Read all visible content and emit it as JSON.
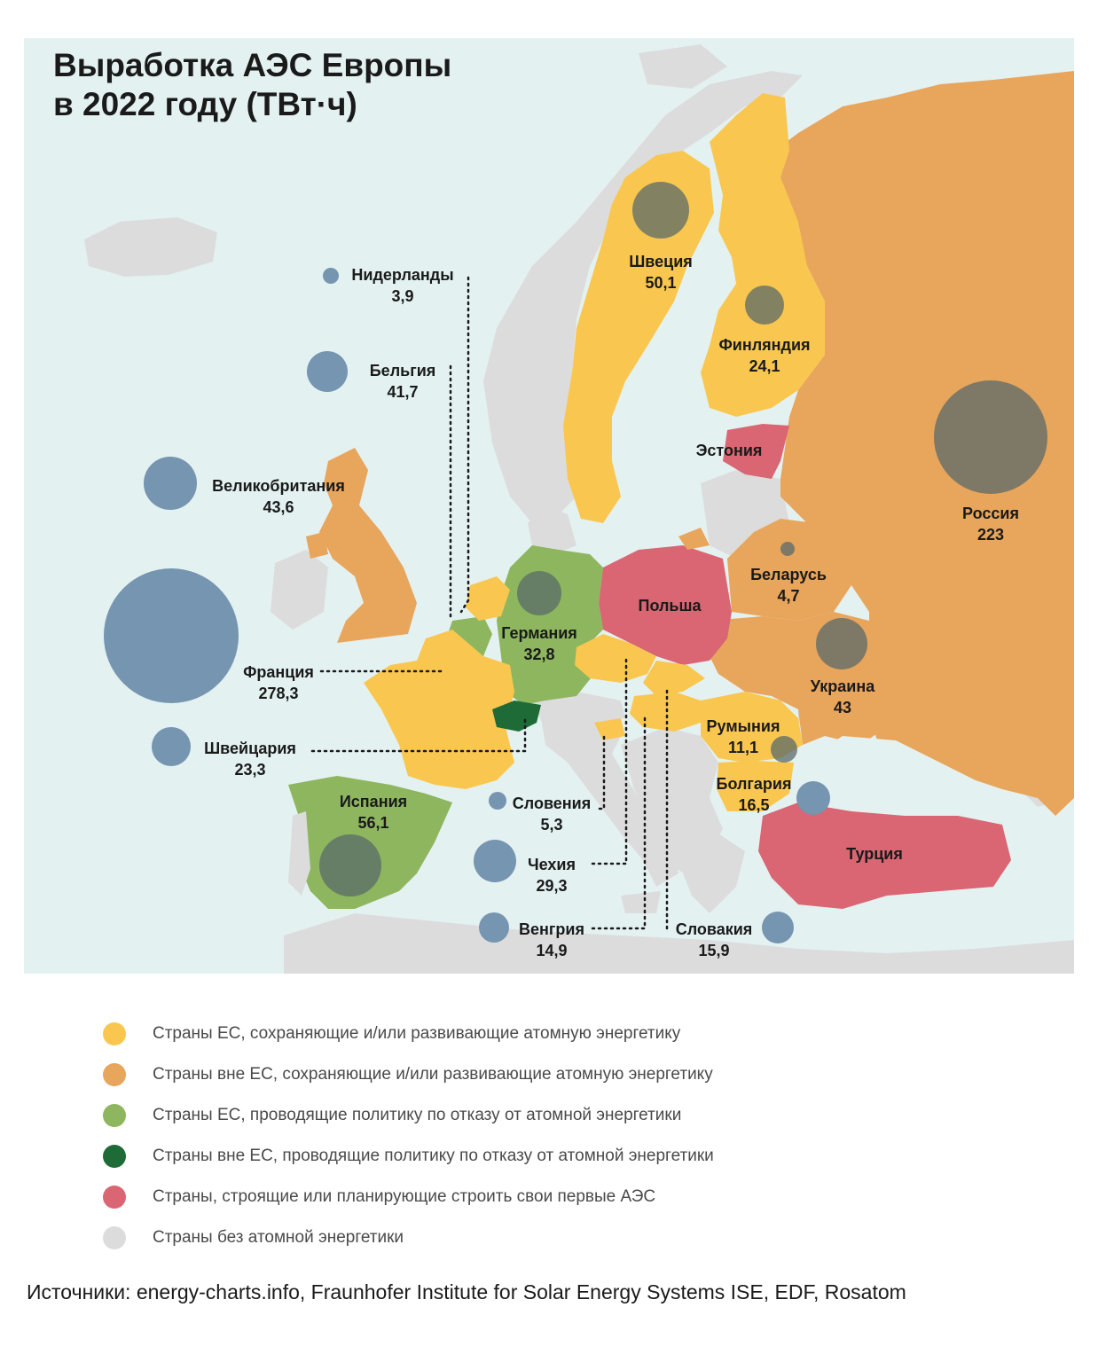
{
  "title": {
    "line1": "Выработка АЭС Европы",
    "line2": "в 2022 году (ТВт·ч)"
  },
  "colors": {
    "eu_keep": "#f9c74f",
    "non_eu_keep": "#e8a55c",
    "eu_phaseout": "#8db65e",
    "non_eu_phaseout": "#1e6b38",
    "first_npp": "#d96672",
    "no_nuclear": "#dcdcdc",
    "sea": "#e4f1f1",
    "bubble_onmap": "#5a6b69",
    "bubble_offmap": "#7595b0"
  },
  "countries": [
    {
      "key": "sweden",
      "name": "Швеция",
      "value": "50,1"
    },
    {
      "key": "finland",
      "name": "Финляндия",
      "value": "24,1"
    },
    {
      "key": "estonia",
      "name": "Эстония",
      "value": ""
    },
    {
      "key": "russia",
      "name": "Россия",
      "value": "223"
    },
    {
      "key": "belarus",
      "name": "Беларусь",
      "value": "4,7"
    },
    {
      "key": "poland",
      "name": "Польша",
      "value": ""
    },
    {
      "key": "germany",
      "name": "Германия",
      "value": "32,8"
    },
    {
      "key": "ukraine",
      "name": "Украина",
      "value": "43"
    },
    {
      "key": "romania",
      "name": "Румыния",
      "value": "11,1"
    },
    {
      "key": "bulgaria",
      "name": "Болгария",
      "value": "16,5"
    },
    {
      "key": "turkey",
      "name": "Турция",
      "value": ""
    },
    {
      "key": "spain",
      "name": "Испания",
      "value": "56,1"
    },
    {
      "key": "france",
      "name": "Франция",
      "value": "278,3"
    },
    {
      "key": "switzerland",
      "name": "Швейцария",
      "value": "23,3"
    },
    {
      "key": "uk",
      "name": "Великобритания",
      "value": "43,6"
    },
    {
      "key": "belgium",
      "name": "Бельгия",
      "value": "41,7"
    },
    {
      "key": "netherlands",
      "name": "Нидерланды",
      "value": "3,9"
    },
    {
      "key": "slovenia",
      "name": "Словения",
      "value": "5,3"
    },
    {
      "key": "czechia",
      "name": "Чехия",
      "value": "29,3"
    },
    {
      "key": "hungary",
      "name": "Венгрия",
      "value": "14,9"
    },
    {
      "key": "slovakia",
      "name": "Словакия",
      "value": "15,9"
    }
  ],
  "legend": [
    {
      "color": "#f9c74f",
      "label": "Страны ЕС, сохраняющие и/или развивающие атомную энергетику"
    },
    {
      "color": "#e8a55c",
      "label": "Страны вне ЕС,  сохраняющие и/или развивающие атомную энергетику"
    },
    {
      "color": "#8db65e",
      "label": "Страны ЕС, проводящие политику по отказу от атомной энергетики"
    },
    {
      "color": "#1e6b38",
      "label": "Страны вне ЕС, проводящие политику по отказу от атомной энергетики"
    },
    {
      "color": "#d96672",
      "label": "Страны, строящие или планирующие строить свои первые АЭС"
    },
    {
      "color": "#dcdcdc",
      "label": "Страны без атомной энергетики"
    }
  ],
  "source": "Источники: energy-charts.info, Fraunhofer Institute for Solar Energy Systems ISE, EDF, Rosatom"
}
